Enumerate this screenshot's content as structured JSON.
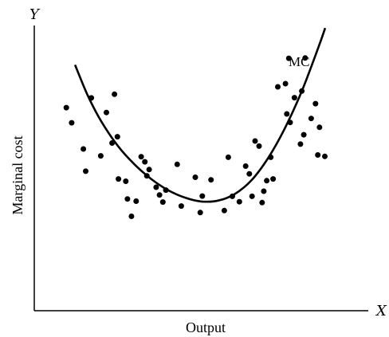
{
  "chart_data": {
    "type": "scatter",
    "xlabel": "Output",
    "ylabel": "Marginal cost",
    "x_axis_letter": "X",
    "y_axis_letter": "Y",
    "xlim": [
      0,
      100
    ],
    "ylim": [
      0,
      100
    ],
    "grid": false,
    "legend": "none",
    "tick_labels": "none",
    "curve": {
      "label": "MC",
      "points": [
        [
          12.2,
          86.2
        ],
        [
          16,
          75.5
        ],
        [
          20,
          66.5
        ],
        [
          25,
          57.8
        ],
        [
          30,
          51.3
        ],
        [
          35,
          46.2
        ],
        [
          40,
          42.3
        ],
        [
          45,
          39.7
        ],
        [
          50,
          38.3
        ],
        [
          55,
          38.6
        ],
        [
          60,
          40.9
        ],
        [
          65,
          45.7
        ],
        [
          70,
          53.5
        ],
        [
          75,
          63.9
        ],
        [
          80,
          76.7
        ],
        [
          85,
          92.1
        ],
        [
          87.1,
          99.1
        ]
      ]
    },
    "points": [
      [
        9.6,
        71.2
      ],
      [
        11.2,
        65.9
      ],
      [
        14.7,
        56.7
      ],
      [
        15.4,
        48.9
      ],
      [
        17.1,
        74.6
      ],
      [
        19.9,
        54.3
      ],
      [
        21.6,
        69.5
      ],
      [
        23.3,
        58.8
      ],
      [
        24.0,
        75.9
      ],
      [
        24.9,
        61.0
      ],
      [
        25.2,
        46.2
      ],
      [
        27.4,
        45.4
      ],
      [
        27.9,
        39.2
      ],
      [
        29.1,
        33.1
      ],
      [
        30.5,
        38.4
      ],
      [
        32.0,
        54.0
      ],
      [
        33.1,
        52.2
      ],
      [
        33.7,
        47.3
      ],
      [
        34.4,
        49.5
      ],
      [
        36.5,
        43.3
      ],
      [
        37.5,
        40.6
      ],
      [
        38.5,
        38.1
      ],
      [
        39.4,
        42.3
      ],
      [
        42.8,
        51.3
      ],
      [
        44.0,
        36.7
      ],
      [
        48.2,
        46.8
      ],
      [
        49.7,
        34.4
      ],
      [
        50.3,
        40.2
      ],
      [
        52.9,
        45.9
      ],
      [
        56.9,
        35.1
      ],
      [
        58.1,
        53.8
      ],
      [
        59.3,
        40.1
      ],
      [
        61.4,
        38.2
      ],
      [
        63.3,
        50.7
      ],
      [
        64.4,
        48.0
      ],
      [
        65.2,
        40.1
      ],
      [
        66.1,
        59.5
      ],
      [
        67.3,
        57.7
      ],
      [
        68.2,
        37.9
      ],
      [
        68.7,
        41.9
      ],
      [
        69.6,
        45.6
      ],
      [
        70.8,
        53.8
      ],
      [
        71.5,
        46.2
      ],
      [
        72.9,
        78.5
      ],
      [
        75.2,
        79.6
      ],
      [
        75.6,
        69.0
      ],
      [
        76.2,
        88.5
      ],
      [
        76.6,
        66.0
      ],
      [
        77.9,
        74.7
      ],
      [
        79.7,
        58.4
      ],
      [
        80.1,
        77.0
      ],
      [
        80.7,
        61.7
      ],
      [
        81.1,
        88.6
      ],
      [
        82.9,
        67.4
      ],
      [
        84.2,
        72.6
      ],
      [
        84.9,
        54.6
      ],
      [
        85.4,
        64.3
      ],
      [
        87.0,
        54.1
      ]
    ]
  }
}
